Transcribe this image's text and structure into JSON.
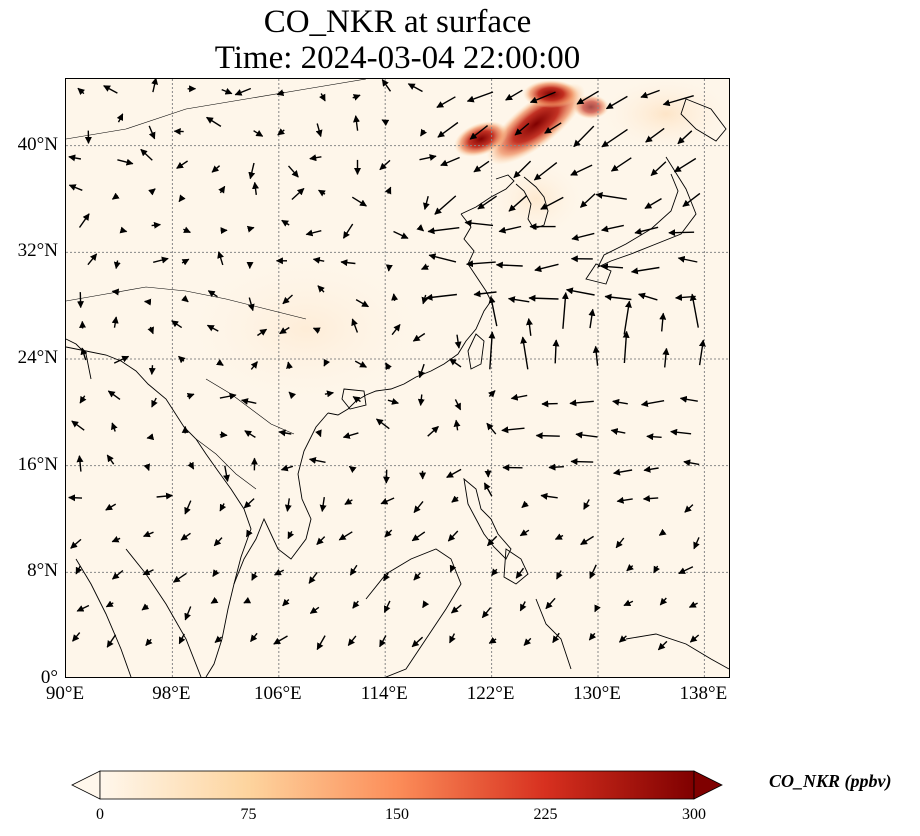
{
  "title_line1": "CO_NKR at surface",
  "title_line2": "Time: 2024-03-04 22:00:00",
  "map": {
    "lon_range": [
      90,
      140
    ],
    "lat_range": [
      0,
      45
    ],
    "background_color": "#fef6ea",
    "coastline_color": "#000000",
    "gridline_style": "dotted",
    "high_concentration_region": "Northeast China / Korea border"
  },
  "x_ticks": [
    "90°E",
    "98°E",
    "106°E",
    "114°E",
    "122°E",
    "130°E",
    "138°E"
  ],
  "y_ticks": [
    "40°N",
    "32°N",
    "24°N",
    "16°N",
    "8°N",
    "0°"
  ],
  "colorbar": {
    "label": "CO_NKR (ppbv)",
    "ticks": [
      "0",
      "75",
      "150",
      "225",
      "300"
    ],
    "colormap": "OrRd",
    "colors": [
      "#fff7ec",
      "#fdd49e",
      "#fc8d59",
      "#d7301f",
      "#7f0000"
    ],
    "extend": "both"
  }
}
